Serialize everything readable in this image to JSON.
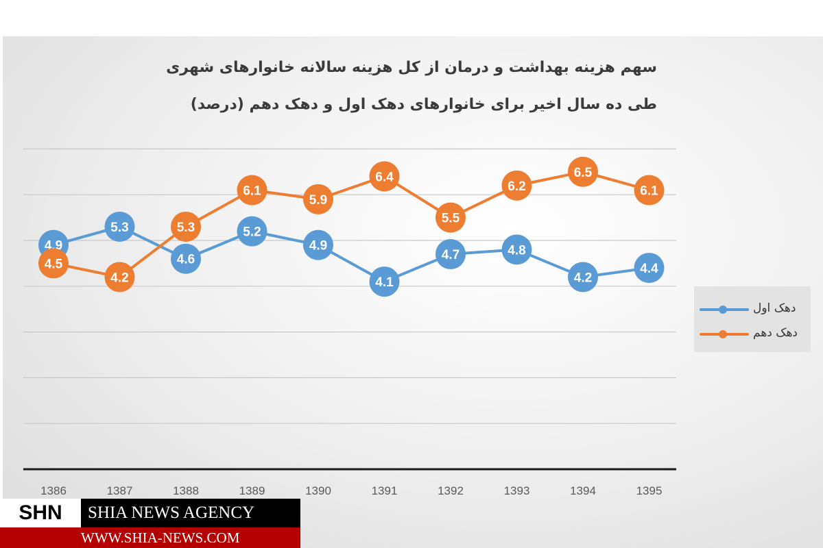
{
  "chart_data": {
    "type": "line",
    "title_lines": [
      "سهم هزینه بهداشت و درمان از کل هزینه سالانه خانوارهای  شهری",
      "طی ده سال اخیر برای خانوارهای  دهک اول و دهک دهم (درصد)"
    ],
    "categories": [
      "1386",
      "1387",
      "1388",
      "1389",
      "1390",
      "1391",
      "1392",
      "1393",
      "1394",
      "1395"
    ],
    "series": [
      {
        "name": "دهک اول",
        "color": "#5b9bd5",
        "values": [
          4.9,
          5.3,
          4.6,
          5.2,
          4.9,
          4.1,
          4.7,
          4.8,
          4.2,
          4.4
        ]
      },
      {
        "name": "دهک دهم",
        "color": "#ed7d31",
        "values": [
          4.5,
          4.2,
          5.3,
          6.1,
          5.9,
          6.4,
          5.5,
          6.2,
          6.5,
          6.1
        ]
      }
    ],
    "ylim": [
      0,
      7
    ],
    "grid": true,
    "legend_position": "right"
  },
  "watermark": {
    "brand": "SHN",
    "agency": "SHIA NEWS AGENCY",
    "url": "WWW.SHIA-NEWS.COM"
  }
}
